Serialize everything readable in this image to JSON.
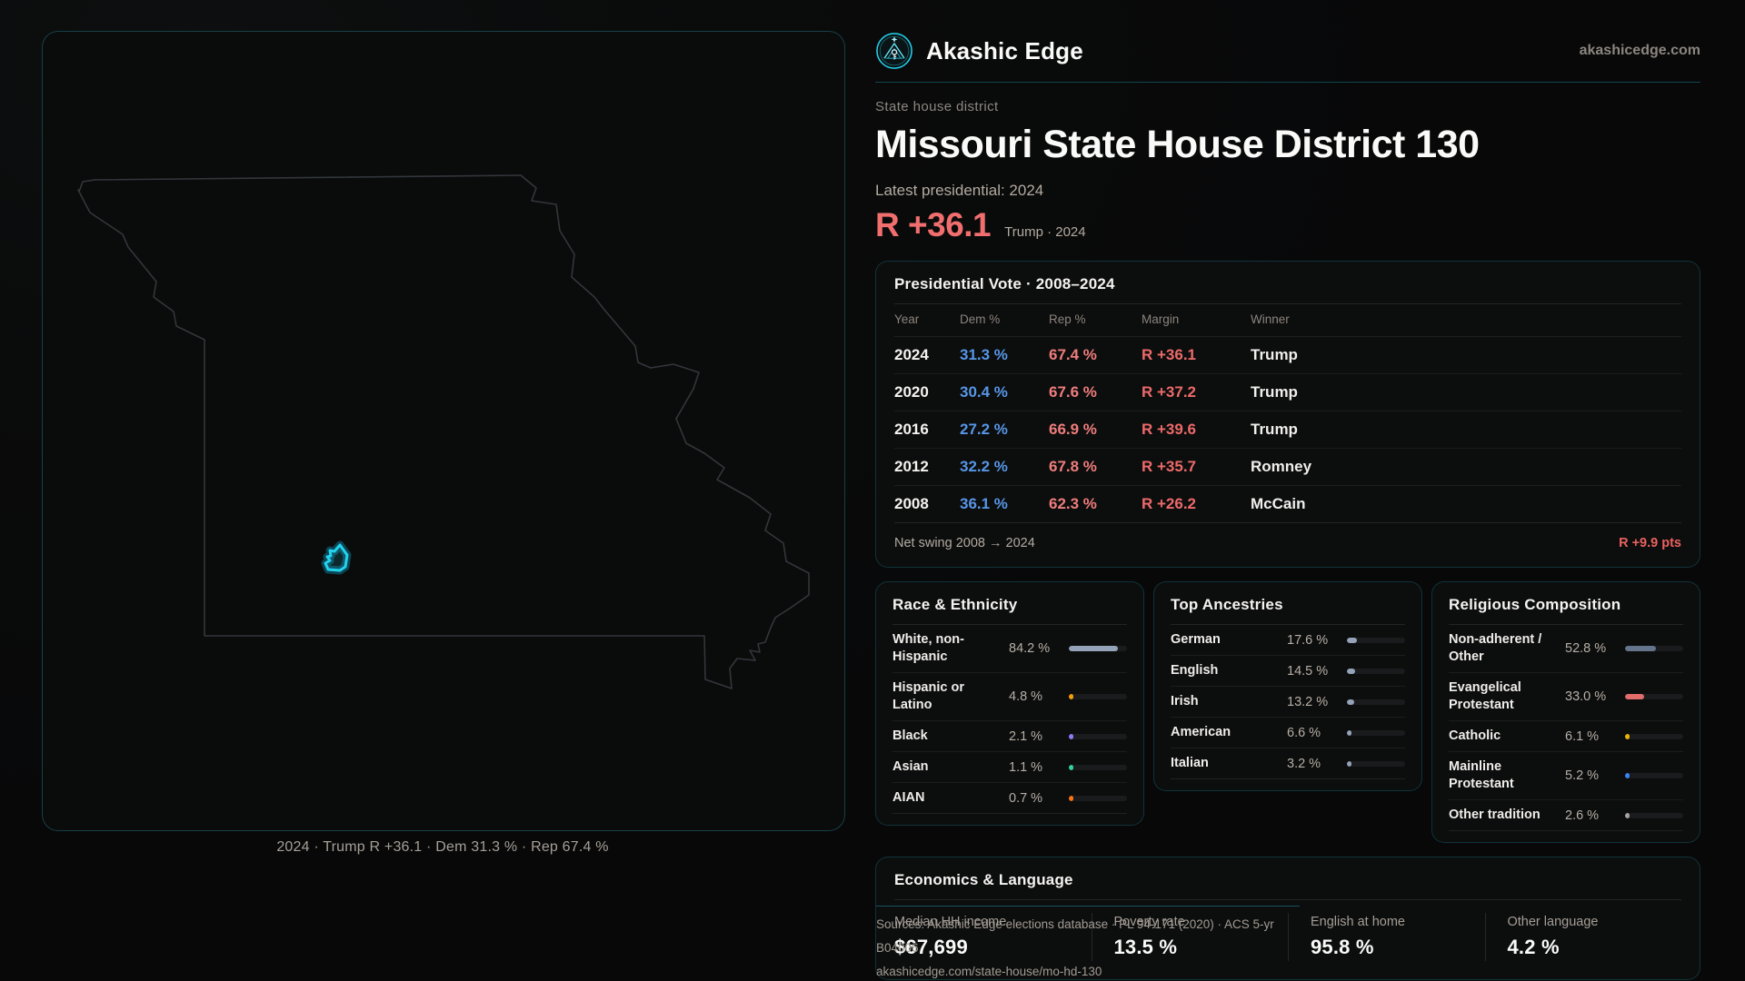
{
  "brand": {
    "name": "Akashic Edge",
    "domain": "akashicedge.com",
    "accent_color": "#22d3ee"
  },
  "hero": {
    "kicker": "State house district",
    "title": "Missouri State House District 130",
    "latest_label": "Latest presidential: 2024",
    "margin_value": "R +36.1",
    "margin_context": "Trump · 2024",
    "margin_color": "#f16e6e"
  },
  "map": {
    "caption": "2024 · Trump R +36.1 · Dem 31.3 % · Rep 67.4 %",
    "district_color": "#22d3ee",
    "outline_color": "#32373b"
  },
  "presidential_table": {
    "title": "Presidential Vote · 2008–2024",
    "columns": [
      "Year",
      "Dem %",
      "Rep %",
      "Margin",
      "Winner"
    ],
    "rows": [
      {
        "year": "2024",
        "dem": "31.3 %",
        "rep": "67.4 %",
        "margin": "R +36.1",
        "winner": "Trump"
      },
      {
        "year": "2020",
        "dem": "30.4 %",
        "rep": "67.6 %",
        "margin": "R +37.2",
        "winner": "Trump"
      },
      {
        "year": "2016",
        "dem": "27.2 %",
        "rep": "66.9 %",
        "margin": "R +39.6",
        "winner": "Trump"
      },
      {
        "year": "2012",
        "dem": "32.2 %",
        "rep": "67.8 %",
        "margin": "R +35.7",
        "winner": "Romney"
      },
      {
        "year": "2008",
        "dem": "36.1 %",
        "rep": "62.3 %",
        "margin": "R +26.2",
        "winner": "McCain"
      }
    ],
    "dem_color": "#5796e6",
    "rep_color": "#ef7d7d",
    "net_swing_label": "Net swing 2008 → 2024",
    "net_swing_value": "R +9.9 pts"
  },
  "race_panel": {
    "title": "Race & Ethnicity",
    "rows": [
      {
        "label": "White, non-Hispanic",
        "value": "84.2 %",
        "pct": 84.2,
        "color": "#94a3b8"
      },
      {
        "label": "Hispanic or Latino",
        "value": "4.8 %",
        "pct": 4.8,
        "color": "#f59e0b"
      },
      {
        "label": "Black",
        "value": "2.1 %",
        "pct": 2.1,
        "color": "#8b7cf6"
      },
      {
        "label": "Asian",
        "value": "1.1 %",
        "pct": 1.1,
        "color": "#34d399"
      },
      {
        "label": "AIAN",
        "value": "0.7 %",
        "pct": 0.7,
        "color": "#f97316"
      }
    ]
  },
  "ancestry_panel": {
    "title": "Top Ancestries",
    "rows": [
      {
        "label": "German",
        "value": "17.6 %",
        "pct": 17.6,
        "color": "#94a3b8"
      },
      {
        "label": "English",
        "value": "14.5 %",
        "pct": 14.5,
        "color": "#94a3b8"
      },
      {
        "label": "Irish",
        "value": "13.2 %",
        "pct": 13.2,
        "color": "#94a3b8"
      },
      {
        "label": "American",
        "value": "6.6 %",
        "pct": 6.6,
        "color": "#94a3b8"
      },
      {
        "label": "Italian",
        "value": "3.2 %",
        "pct": 3.2,
        "color": "#94a3b8"
      }
    ]
  },
  "religion_panel": {
    "title": "Religious Composition",
    "rows": [
      {
        "label": "Non-adherent / Other",
        "value": "52.8 %",
        "pct": 52.8,
        "color": "#64748b"
      },
      {
        "label": "Evangelical Protestant",
        "value": "33.0 %",
        "pct": 33.0,
        "color": "#e06c6c"
      },
      {
        "label": "Catholic",
        "value": "6.1 %",
        "pct": 6.1,
        "color": "#eab308"
      },
      {
        "label": "Mainline Protestant",
        "value": "5.2 %",
        "pct": 5.2,
        "color": "#3b82f6"
      },
      {
        "label": "Other tradition",
        "value": "2.6 %",
        "pct": 2.6,
        "color": "#a8a29e"
      }
    ]
  },
  "economics_panel": {
    "title": "Economics & Language",
    "stats": [
      {
        "label": "Median HH income",
        "value": "$67,699"
      },
      {
        "label": "Poverty rate",
        "value": "13.5 %"
      },
      {
        "label": "English at home",
        "value": "95.8 %"
      },
      {
        "label": "Other language",
        "value": "4.2 %"
      }
    ]
  },
  "sources": {
    "line1": "Sources: Akashic Edge elections database · PL 94-171 (2020) · ACS 5-yr B04006",
    "line2": "akashicedge.com/state-house/mo-hd-130"
  }
}
